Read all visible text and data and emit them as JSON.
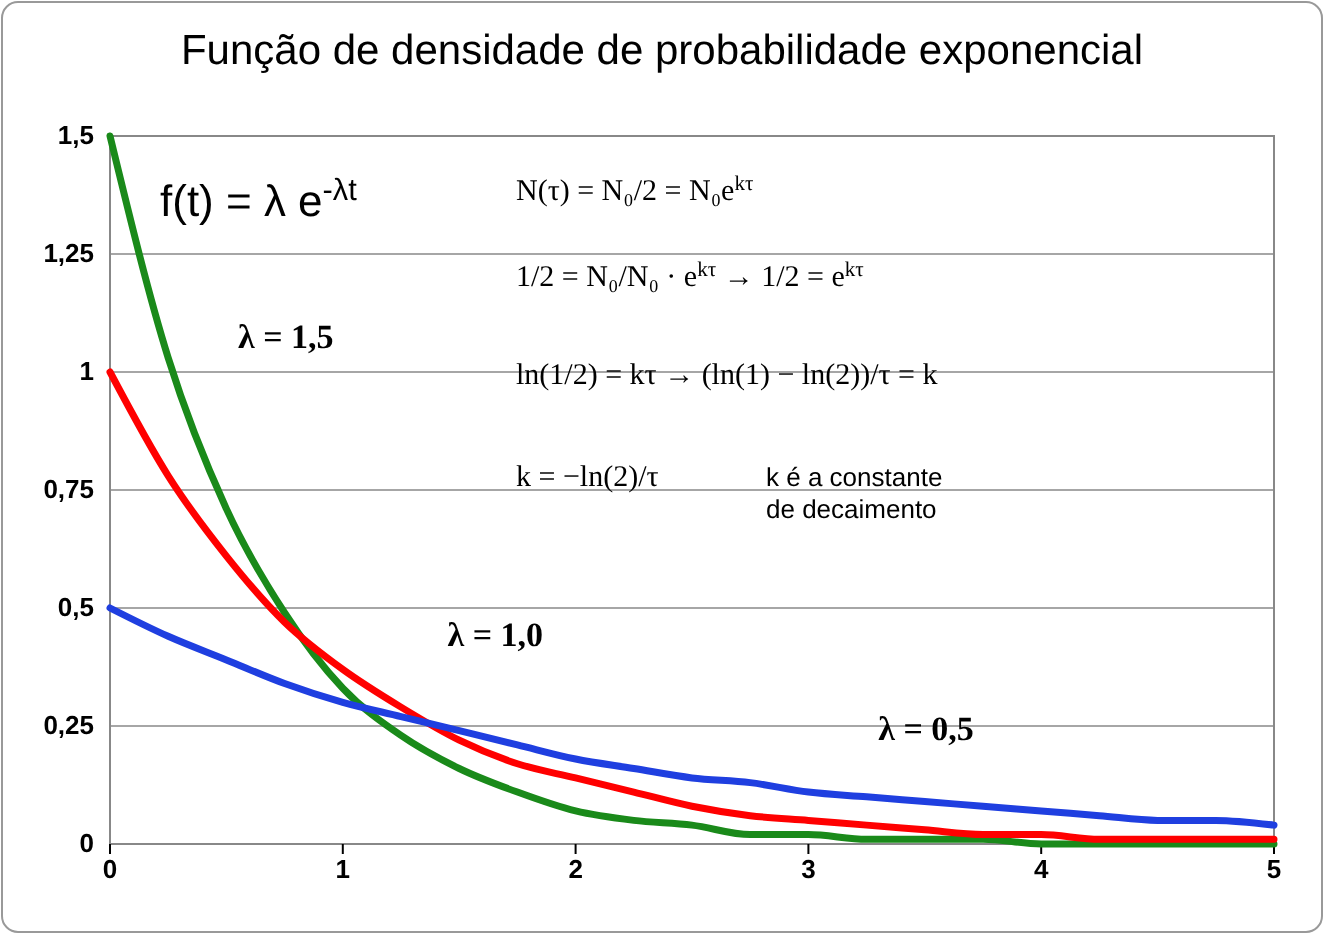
{
  "chart_data": {
    "type": "line",
    "title": "Função de densidade de probabilidade exponencial",
    "x": [
      0,
      0.25,
      0.5,
      0.75,
      1,
      1.25,
      1.5,
      1.75,
      2,
      2.25,
      2.5,
      2.75,
      3,
      3.25,
      3.5,
      3.75,
      4,
      4.25,
      4.5,
      4.75,
      5
    ],
    "series": [
      {
        "name": "λ = 1,5",
        "color": "#1a8a1a",
        "values": [
          1.5,
          1.03,
          0.71,
          0.49,
          0.33,
          0.23,
          0.16,
          0.11,
          0.07,
          0.05,
          0.04,
          0.02,
          0.02,
          0.01,
          0.01,
          0.01,
          0,
          0,
          0,
          0,
          0
        ]
      },
      {
        "name": "λ = 1,0",
        "color": "#ff0000",
        "values": [
          1,
          0.78,
          0.61,
          0.47,
          0.37,
          0.29,
          0.22,
          0.17,
          0.14,
          0.11,
          0.08,
          0.06,
          0.05,
          0.04,
          0.03,
          0.02,
          0.02,
          0.01,
          0.01,
          0.01,
          0.01
        ]
      },
      {
        "name": "λ = 0,5",
        "color": "#1f3fe0",
        "values": [
          0.5,
          0.44,
          0.39,
          0.34,
          0.3,
          0.27,
          0.24,
          0.21,
          0.18,
          0.16,
          0.14,
          0.13,
          0.11,
          0.1,
          0.09,
          0.08,
          0.07,
          0.06,
          0.05,
          0.05,
          0.04
        ]
      }
    ],
    "xlim": [
      0,
      5
    ],
    "xticks": [
      0,
      1,
      2,
      3,
      4,
      5
    ],
    "ylim": [
      0,
      1.5
    ],
    "yticks": [
      0,
      {
        "value": 0.25,
        "label": "0,25"
      },
      {
        "value": 0.5,
        "label": "0,5"
      },
      {
        "value": 0.75,
        "label": "0,75"
      },
      1,
      {
        "value": 1.25,
        "label": "1,25"
      },
      {
        "value": 1.5,
        "label": "1,5"
      }
    ],
    "grid": "y",
    "marker": "none",
    "line_style": "solid",
    "annotations": [
      "f(t) = λ e$^{-λt}$",
      "N(τ) = N₀/2 = N₀e$^{kτ}$",
      "1/2 = N₀/N₀ · e$^{kτ}$ → 1/2 = e$^{kτ}$",
      "ln(1/2) = kτ → (ln(1) − ln(2))/τ = k",
      "k = −ln(2)/τ",
      "k é a constante de decaimento"
    ]
  }
}
